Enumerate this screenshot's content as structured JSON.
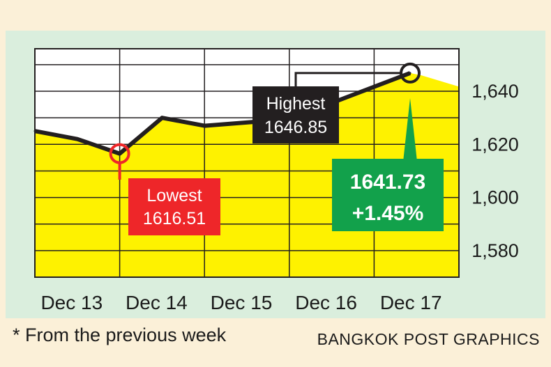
{
  "chart_data": {
    "type": "area",
    "categories": [
      "Dec 13",
      "Dec 14",
      "Dec 15",
      "Dec 16",
      "Dec 17"
    ],
    "x": [
      "Dec 13",
      "Dec 13.5",
      "Dec 14",
      "Dec 14.5",
      "Dec 15",
      "Dec 16",
      "Dec 17"
    ],
    "values": [
      1625.0,
      1622.0,
      1616.51,
      1630.0,
      1627.0,
      1629.5,
      1646.85
    ],
    "ylim": [
      1570,
      1656
    ],
    "yticks": [
      1580,
      1600,
      1620,
      1640
    ],
    "ytick_labels": [
      "1,580",
      "1,600",
      "1,620",
      "1,640"
    ],
    "grid": true,
    "annotations": {
      "lowest": {
        "label": "Lowest",
        "value": "1616.51"
      },
      "highest": {
        "label": "Highest",
        "value": "1646.85"
      },
      "close": {
        "value": "1641.73",
        "change": "+1.45%"
      }
    }
  },
  "colors": {
    "fill": "#fef200",
    "line": "#231f20",
    "lowest": "#ee2629",
    "highest": "#231f20",
    "close": "#12a14b",
    "panel": "#daeedd",
    "page": "#fbf0d8"
  },
  "footnote": "* From the previous week",
  "credit": "BANGKOK POST GRAPHICS"
}
